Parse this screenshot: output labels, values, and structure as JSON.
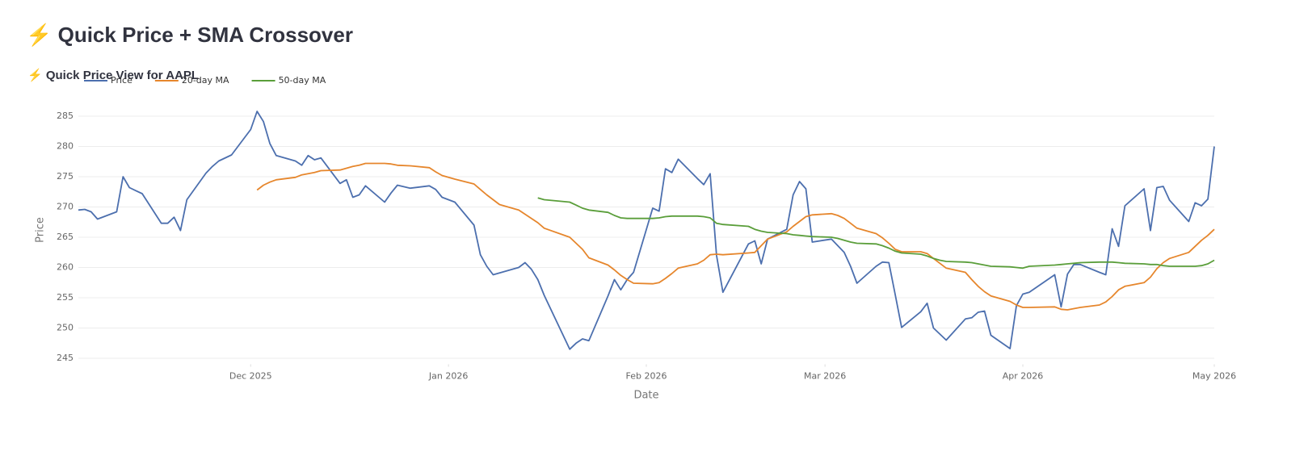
{
  "header": {
    "title": "⚡ Quick Price + SMA Crossover"
  },
  "section": {
    "title": "⚡ Quick Price View for AAPL"
  },
  "chart_data": {
    "type": "line",
    "xlabel": "Date",
    "ylabel": "Price",
    "x": [
      "2025-11-04",
      "2025-11-05",
      "2025-11-06",
      "2025-11-07",
      "2025-11-10",
      "2025-11-11",
      "2025-11-12",
      "2025-11-13",
      "2025-11-14",
      "2025-11-17",
      "2025-11-18",
      "2025-11-19",
      "2025-11-20",
      "2025-11-21",
      "2025-11-24",
      "2025-11-25",
      "2025-11-26",
      "2025-11-28",
      "2025-12-01",
      "2025-12-02",
      "2025-12-03",
      "2025-12-04",
      "2025-12-05",
      "2025-12-08",
      "2025-12-09",
      "2025-12-10",
      "2025-12-11",
      "2025-12-12",
      "2025-12-15",
      "2025-12-16",
      "2025-12-17",
      "2025-12-18",
      "2025-12-19",
      "2025-12-22",
      "2025-12-23",
      "2025-12-24",
      "2025-12-26",
      "2025-12-29",
      "2025-12-30",
      "2025-12-31",
      "2026-01-02",
      "2026-01-05",
      "2026-01-06",
      "2026-01-07",
      "2026-01-08",
      "2026-01-09",
      "2026-01-12",
      "2026-01-13",
      "2026-01-14",
      "2026-01-15",
      "2026-01-16",
      "2026-01-20",
      "2026-01-21",
      "2026-01-22",
      "2026-01-23",
      "2026-01-26",
      "2026-01-27",
      "2026-01-28",
      "2026-01-29",
      "2026-01-30",
      "2026-02-02",
      "2026-02-03",
      "2026-02-04",
      "2026-02-05",
      "2026-02-06",
      "2026-02-09",
      "2026-02-10",
      "2026-02-11",
      "2026-02-12",
      "2026-02-13",
      "2026-02-17",
      "2026-02-18",
      "2026-02-19",
      "2026-02-20",
      "2026-02-23",
      "2026-02-24",
      "2026-02-25",
      "2026-02-26",
      "2026-02-27",
      "2026-03-02",
      "2026-03-03",
      "2026-03-04",
      "2026-03-05",
      "2026-03-06",
      "2026-03-09",
      "2026-03-10",
      "2026-03-11",
      "2026-03-12",
      "2026-03-13",
      "2026-03-16",
      "2026-03-17",
      "2026-03-18",
      "2026-03-19",
      "2026-03-20",
      "2026-03-23",
      "2026-03-24",
      "2026-03-25",
      "2026-03-26",
      "2026-03-27",
      "2026-03-30",
      "2026-03-31",
      "2026-04-01",
      "2026-04-02",
      "2026-04-06",
      "2026-04-07",
      "2026-04-08",
      "2026-04-09",
      "2026-04-10",
      "2026-04-13",
      "2026-04-14",
      "2026-04-15",
      "2026-04-16",
      "2026-04-17",
      "2026-04-20",
      "2026-04-21",
      "2026-04-22",
      "2026-04-23",
      "2026-04-24",
      "2026-04-27",
      "2026-04-28",
      "2026-04-29",
      "2026-04-30",
      "2026-05-01"
    ],
    "series": [
      {
        "name": "Price",
        "color": "#4c6fae",
        "values": [
          269.5,
          269.6,
          269.2,
          268.0,
          269.2,
          275.0,
          273.2,
          272.7,
          272.2,
          267.3,
          267.3,
          268.3,
          266.1,
          271.2,
          275.6,
          276.7,
          277.6,
          278.6,
          282.8,
          285.8,
          284.1,
          280.5,
          278.5,
          277.6,
          276.9,
          278.5,
          277.8,
          278.1,
          273.9,
          274.5,
          271.6,
          272.0,
          273.5,
          270.8,
          272.3,
          273.6,
          273.1,
          273.5,
          272.9,
          271.6,
          270.8,
          267.0,
          262.1,
          260.2,
          258.8,
          259.1,
          260.0,
          260.8,
          259.7,
          258.0,
          255.4,
          246.5,
          247.5,
          248.2,
          247.9,
          255.3,
          258.0,
          256.3,
          258.0,
          259.2,
          269.8,
          269.3,
          276.3,
          275.7,
          277.9,
          274.7,
          273.7,
          275.5,
          262.0,
          255.9,
          263.9,
          264.4,
          260.6,
          264.7,
          266.3,
          272.0,
          274.2,
          273.0,
          264.2,
          264.7,
          263.6,
          262.5,
          260.2,
          257.4,
          260.2,
          260.9,
          260.8,
          255.5,
          250.1,
          252.7,
          254.1,
          250.0,
          249.0,
          248.0,
          251.5,
          251.7,
          252.6,
          252.8,
          248.8,
          246.6,
          253.7,
          255.6,
          255.9,
          258.8,
          253.5,
          258.9,
          260.5,
          260.5,
          259.2,
          258.8,
          266.4,
          263.5,
          270.2,
          273.0,
          266.1,
          273.2,
          273.4,
          271.1,
          267.6,
          270.7,
          270.2,
          271.3,
          280.0
        ]
      },
      {
        "name": "20-day MA",
        "color": "#e6862c",
        "values": [
          null,
          null,
          null,
          null,
          null,
          null,
          null,
          null,
          null,
          null,
          null,
          null,
          null,
          null,
          null,
          null,
          null,
          null,
          null,
          272.8,
          273.6,
          274.1,
          274.5,
          274.9,
          275.3,
          275.5,
          275.7,
          276.0,
          276.1,
          276.4,
          276.7,
          276.9,
          277.2,
          277.2,
          277.1,
          276.9,
          276.8,
          276.5,
          275.8,
          275.2,
          274.6,
          273.8,
          272.9,
          272.0,
          271.2,
          270.4,
          269.5,
          268.8,
          268.1,
          267.4,
          266.5,
          265.0,
          264.0,
          263.0,
          261.6,
          260.4,
          259.6,
          258.7,
          258.0,
          257.4,
          257.3,
          257.5,
          258.2,
          259.0,
          259.9,
          260.6,
          261.2,
          262.1,
          262.2,
          262.1,
          262.4,
          262.5,
          263.6,
          264.7,
          265.9,
          266.8,
          267.6,
          268.4,
          268.7,
          268.9,
          268.6,
          268.1,
          267.3,
          266.5,
          265.6,
          264.9,
          264.0,
          263.0,
          262.6,
          262.6,
          262.3,
          261.5,
          260.7,
          259.9,
          259.2,
          258.0,
          256.9,
          256.0,
          255.3,
          254.4,
          253.8,
          253.4,
          253.4,
          253.5,
          253.1,
          253.0,
          253.2,
          253.4,
          253.8,
          254.3,
          255.2,
          256.3,
          256.9,
          257.5,
          258.4,
          259.8,
          260.8,
          261.5,
          262.5,
          263.5,
          264.5,
          265.3,
          266.3
        ]
      },
      {
        "name": "50-day MA",
        "color": "#5a9e3a",
        "values": [
          null,
          null,
          null,
          null,
          null,
          null,
          null,
          null,
          null,
          null,
          null,
          null,
          null,
          null,
          null,
          null,
          null,
          null,
          null,
          null,
          null,
          null,
          null,
          null,
          null,
          null,
          null,
          null,
          null,
          null,
          null,
          null,
          null,
          null,
          null,
          null,
          null,
          null,
          null,
          null,
          null,
          null,
          null,
          null,
          null,
          null,
          null,
          null,
          null,
          271.5,
          271.2,
          270.8,
          270.3,
          269.8,
          269.5,
          269.1,
          268.6,
          268.2,
          268.1,
          268.1,
          268.1,
          268.2,
          268.4,
          268.5,
          268.5,
          268.5,
          268.4,
          268.2,
          267.3,
          267.1,
          266.8,
          266.3,
          266.0,
          265.8,
          265.6,
          265.4,
          265.3,
          265.2,
          265.1,
          265.0,
          264.8,
          264.5,
          264.2,
          264.0,
          263.9,
          263.6,
          263.2,
          262.7,
          262.4,
          262.2,
          261.9,
          261.5,
          261.2,
          261.0,
          260.9,
          260.8,
          260.6,
          260.4,
          260.2,
          260.1,
          260.0,
          259.9,
          260.2,
          260.4,
          260.5,
          260.6,
          260.7,
          260.8,
          260.9,
          260.9,
          260.9,
          260.8,
          260.7,
          260.6,
          260.5,
          260.5,
          260.3,
          260.2,
          260.2,
          260.2,
          260.3,
          260.6,
          261.2
        ]
      }
    ],
    "xlim": [
      "2025-11-04",
      "2026-05-01"
    ],
    "xticks": [
      {
        "value": "2025-12-01",
        "label": "Dec 2025"
      },
      {
        "value": "2026-01-01",
        "label": "Jan 2026"
      },
      {
        "value": "2026-02-01",
        "label": "Feb 2026"
      },
      {
        "value": "2026-03-01",
        "label": "Mar 2026"
      },
      {
        "value": "2026-04-01",
        "label": "Apr 2026"
      },
      {
        "value": "2026-05-01",
        "label": "May 2026"
      }
    ],
    "ylim": [
      244,
      287
    ],
    "yticks": [
      245,
      250,
      255,
      260,
      265,
      270,
      275,
      280,
      285
    ],
    "grid": true,
    "legend": "top-left"
  }
}
